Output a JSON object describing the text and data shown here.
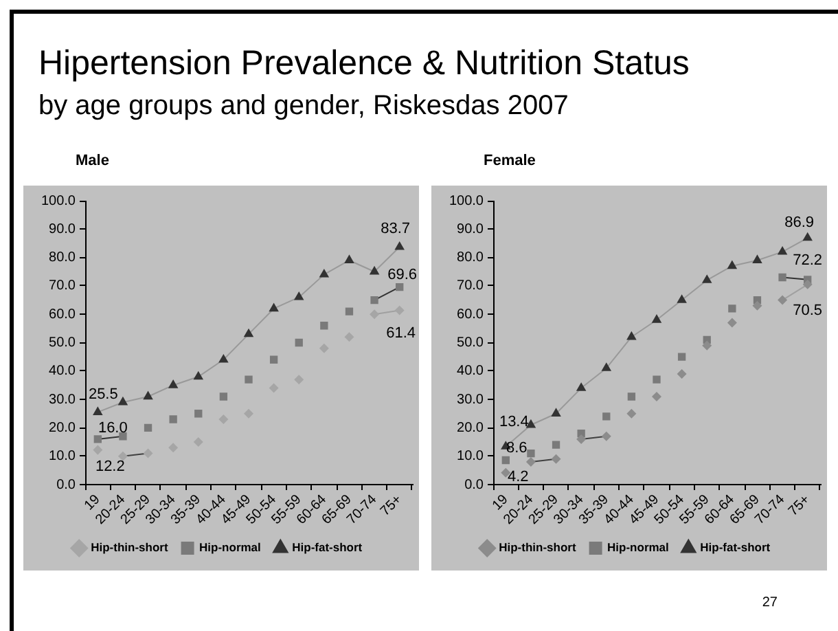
{
  "chart_data": [
    {
      "type": "other",
      "title": "Hipertension Prevalence & Nutrition Status",
      "subtitle": "by age groups and gender, Riskesdas 2007",
      "annotations": [
        "27"
      ]
    },
    {
      "type": "line",
      "title": "Male",
      "categories": [
        "19",
        "20-24",
        "25-29",
        "30-34",
        "35-39",
        "40-44",
        "45-49",
        "50-54",
        "55-59",
        "60-64",
        "65-69",
        "70-74",
        "75+"
      ],
      "series": [
        {
          "name": "Hip-thin-short",
          "type": "scatter",
          "marker": "diamond",
          "color": "#a6a6a6",
          "values": [
            12.2,
            10,
            11,
            13,
            15,
            23,
            25,
            34,
            37,
            48,
            52,
            60,
            61.4
          ],
          "value_labels": [
            "12.2",
            null,
            null,
            null,
            null,
            null,
            null,
            null,
            null,
            null,
            null,
            null,
            "61.4"
          ]
        },
        {
          "name": "Hip-normal",
          "type": "scatter",
          "marker": "square",
          "color": "#7a7a7a",
          "values": [
            16.0,
            17,
            20,
            23,
            25,
            31,
            37,
            44,
            50,
            56,
            61,
            65,
            69.6
          ],
          "value_labels": [
            "16.0",
            null,
            null,
            null,
            null,
            null,
            null,
            null,
            null,
            null,
            null,
            null,
            "69.6"
          ]
        },
        {
          "name": "Hip-fat-short",
          "type": "scatter",
          "marker": "triangle",
          "color": "#333333",
          "values": [
            25.5,
            29,
            31,
            35,
            38,
            44,
            53,
            62,
            66,
            74,
            79,
            75,
            83.7
          ],
          "value_labels": [
            "25.5",
            null,
            null,
            null,
            null,
            null,
            null,
            null,
            null,
            null,
            null,
            null,
            "83.7"
          ]
        },
        {
          "type": "line",
          "marker": "none",
          "color": "#999999",
          "x": [
            "19",
            "20-24",
            "25-29",
            "30-34",
            "35-39",
            "40-44",
            "45-49",
            "50-54",
            "55-59",
            "60-64",
            "65-69",
            "70-74",
            "75+"
          ],
          "values": [
            25.5,
            29,
            31,
            35,
            38,
            44,
            53,
            62,
            66,
            74,
            79,
            75,
            83.7
          ]
        },
        {
          "type": "line",
          "marker": "none",
          "color": "#333333",
          "x": [
            "19",
            "20-24"
          ],
          "values": [
            16.0,
            17
          ]
        },
        {
          "type": "line",
          "marker": "none",
          "color": "#333333",
          "x": [
            "70-74",
            "75+"
          ],
          "values": [
            65,
            69.6
          ]
        },
        {
          "type": "line",
          "marker": "none",
          "color": "#404040",
          "x": [
            "20-24",
            "25-29"
          ],
          "values": [
            10,
            11
          ]
        },
        {
          "type": "line",
          "marker": "none",
          "color": "#a0a0a0",
          "x": [
            "70-74",
            "75+"
          ],
          "values": [
            60,
            61.4
          ]
        }
      ],
      "ylim": [
        0,
        100
      ],
      "yticks": [
        {
          "value": 0,
          "label": "0.0"
        },
        {
          "value": 10,
          "label": "10.0"
        },
        {
          "value": 20,
          "label": "20.0"
        },
        {
          "value": 30,
          "label": "30.0"
        },
        {
          "value": 40,
          "label": "40.0"
        },
        {
          "value": 50,
          "label": "50.0"
        },
        {
          "value": 60,
          "label": "60.0"
        },
        {
          "value": 70,
          "label": "70.0"
        },
        {
          "value": 80,
          "label": "80.0"
        },
        {
          "value": 90,
          "label": "90.0"
        },
        {
          "value": 100,
          "label": "100.0"
        }
      ],
      "legend": "bottom"
    },
    {
      "type": "line",
      "title": "Female",
      "categories": [
        "19",
        "20-24",
        "25-29",
        "30-34",
        "35-39",
        "40-44",
        "45-49",
        "50-54",
        "55-59",
        "60-64",
        "65-69",
        "70-74",
        "75+"
      ],
      "series": [
        {
          "name": "Hip-thin-short",
          "type": "scatter",
          "marker": "diamond",
          "color": "#8c8c8c",
          "values": [
            4.2,
            8,
            9,
            16,
            17,
            25,
            31,
            39,
            49,
            57,
            63,
            65,
            70.5
          ],
          "value_labels": [
            "4.2",
            null,
            null,
            null,
            null,
            null,
            null,
            null,
            null,
            null,
            null,
            null,
            "70.5"
          ]
        },
        {
          "name": "Hip-normal",
          "type": "scatter",
          "marker": "square",
          "color": "#7a7a7a",
          "values": [
            8.6,
            11,
            14,
            18,
            24,
            31,
            37,
            45,
            51,
            62,
            65,
            73,
            72.2
          ],
          "value_labels": [
            "8.6",
            null,
            null,
            null,
            null,
            null,
            null,
            null,
            null,
            null,
            null,
            null,
            "72.2"
          ]
        },
        {
          "name": "Hip-fat-short",
          "type": "scatter",
          "marker": "triangle",
          "color": "#333333",
          "values": [
            13.4,
            21,
            25,
            34,
            41,
            52,
            58,
            65,
            72,
            77,
            79,
            82,
            86.9
          ],
          "value_labels": [
            "13.4",
            null,
            null,
            null,
            null,
            null,
            null,
            null,
            null,
            null,
            null,
            null,
            "86.9"
          ]
        },
        {
          "type": "line",
          "marker": "none",
          "color": "#999999",
          "x": [
            "19",
            "20-24",
            "25-29",
            "30-34",
            "35-39",
            "40-44",
            "45-49",
            "50-54",
            "55-59",
            "60-64",
            "65-69",
            "70-74",
            "75+"
          ],
          "values": [
            13.4,
            21,
            25,
            34,
            41,
            52,
            58,
            65,
            72,
            77,
            79,
            82,
            86.9
          ]
        },
        {
          "type": "line",
          "marker": "none",
          "color": "#333333",
          "x": [
            "70-74",
            "75+"
          ],
          "values": [
            73,
            72.2
          ]
        },
        {
          "type": "line",
          "marker": "none",
          "color": "#404040",
          "x": [
            "20-24",
            "25-29"
          ],
          "values": [
            8,
            9
          ]
        },
        {
          "type": "line",
          "marker": "none",
          "color": "#404040",
          "x": [
            "30-34",
            "35-39"
          ],
          "values": [
            16,
            17
          ]
        },
        {
          "type": "line",
          "marker": "none",
          "color": "#a0a0a0",
          "x": [
            "70-74",
            "75+"
          ],
          "values": [
            65,
            70.5
          ]
        }
      ],
      "ylim": [
        0,
        100
      ],
      "yticks": [
        {
          "value": 0,
          "label": "0.0"
        },
        {
          "value": 10,
          "label": "10.0"
        },
        {
          "value": 20,
          "label": "20.0"
        },
        {
          "value": 30,
          "label": "30.0"
        },
        {
          "value": 40,
          "label": "40.0"
        },
        {
          "value": 50,
          "label": "50.0"
        },
        {
          "value": 60,
          "label": "60.0"
        },
        {
          "value": 70,
          "label": "70.0"
        },
        {
          "value": 80,
          "label": "80.0"
        },
        {
          "value": 90,
          "label": "90.0"
        },
        {
          "value": 100,
          "label": "100.0"
        }
      ],
      "legend": "bottom"
    }
  ]
}
